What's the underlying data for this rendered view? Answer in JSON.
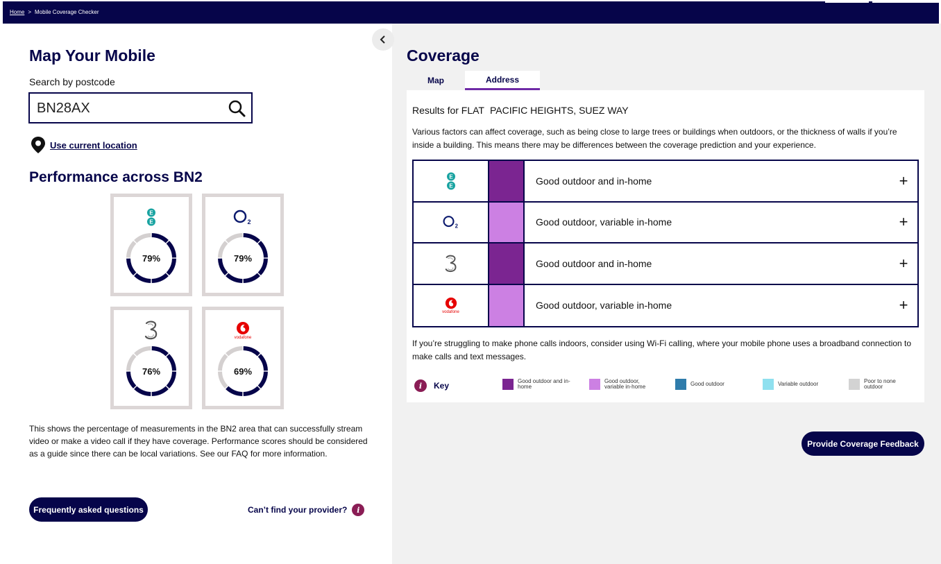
{
  "breadcrumb": {
    "home": "Home",
    "separator": ">",
    "current": "Mobile Coverage Checker"
  },
  "left": {
    "title": "Map Your Mobile",
    "search_label": "Search by postcode",
    "search_value": "BN28AX",
    "use_location": "Use current location",
    "performance_title": "Performance across BN2",
    "cards": [
      {
        "operator": "EE",
        "percent_label": "79%",
        "value": 79
      },
      {
        "operator": "O2",
        "percent_label": "79%",
        "value": 79
      },
      {
        "operator": "Three",
        "percent_label": "76%",
        "value": 76
      },
      {
        "operator": "Vodafone",
        "logo_text": "vodafone",
        "percent_label": "69%",
        "value": 69
      }
    ],
    "info_text": "This shows the percentage of measurements in the BN2 area that can successfully stream video or make a video call if they have coverage. Performance scores should be considered as a guide since there can be local variations. See our FAQ for more information.",
    "faq_button": "Frequently asked questions",
    "cant_find": "Can’t find your provider?"
  },
  "right": {
    "title": "Coverage",
    "tabs": [
      "Map",
      "Address"
    ],
    "active_tab": "Address",
    "results_prefix": "Results for FLAT",
    "results_address": "PACIFIC HEIGHTS, SUEZ WAY",
    "factors_text": "Various factors can affect coverage, such as being close to large trees or buildings when outdoors, or the thickness of walls if you’re inside a building. This means there may be differences between the coverage prediction and your experience.",
    "rows": [
      {
        "operator": "EE",
        "status": "Good outdoor and in-home",
        "color": "#7b2591"
      },
      {
        "operator": "O2",
        "status": "Good outdoor, variable in-home",
        "color": "#cc80e3"
      },
      {
        "operator": "Three",
        "status": "Good outdoor and in-home",
        "color": "#7b2591"
      },
      {
        "operator": "Vodafone",
        "logo_text": "vodafone",
        "status": "Good outdoor, variable in-home",
        "color": "#cc80e3"
      }
    ],
    "wifi_text": "If you’re struggling to make phone calls indoors, consider using Wi-Fi calling, where your mobile phone uses a broadband connection to make calls and text messages.",
    "key_label": "Key",
    "key_items": [
      {
        "label": "Good outdoor and in-home",
        "color": "#7b2591"
      },
      {
        "label": "Good outdoor, variable in-home",
        "color": "#cc80e3"
      },
      {
        "label": "Good outdoor",
        "color": "#2f7cab"
      },
      {
        "label": "Variable outdoor",
        "color": "#8fe0ef"
      },
      {
        "label": "Poor to none outdoor",
        "color": "#d3d3d3"
      }
    ],
    "feedback_button": "Provide Coverage Feedback"
  },
  "colors": {
    "navy": "#06054a",
    "accent": "#6f2aa6",
    "info": "#8a1d55",
    "ee": "#19a3a1",
    "vodafone": "#e60000"
  }
}
